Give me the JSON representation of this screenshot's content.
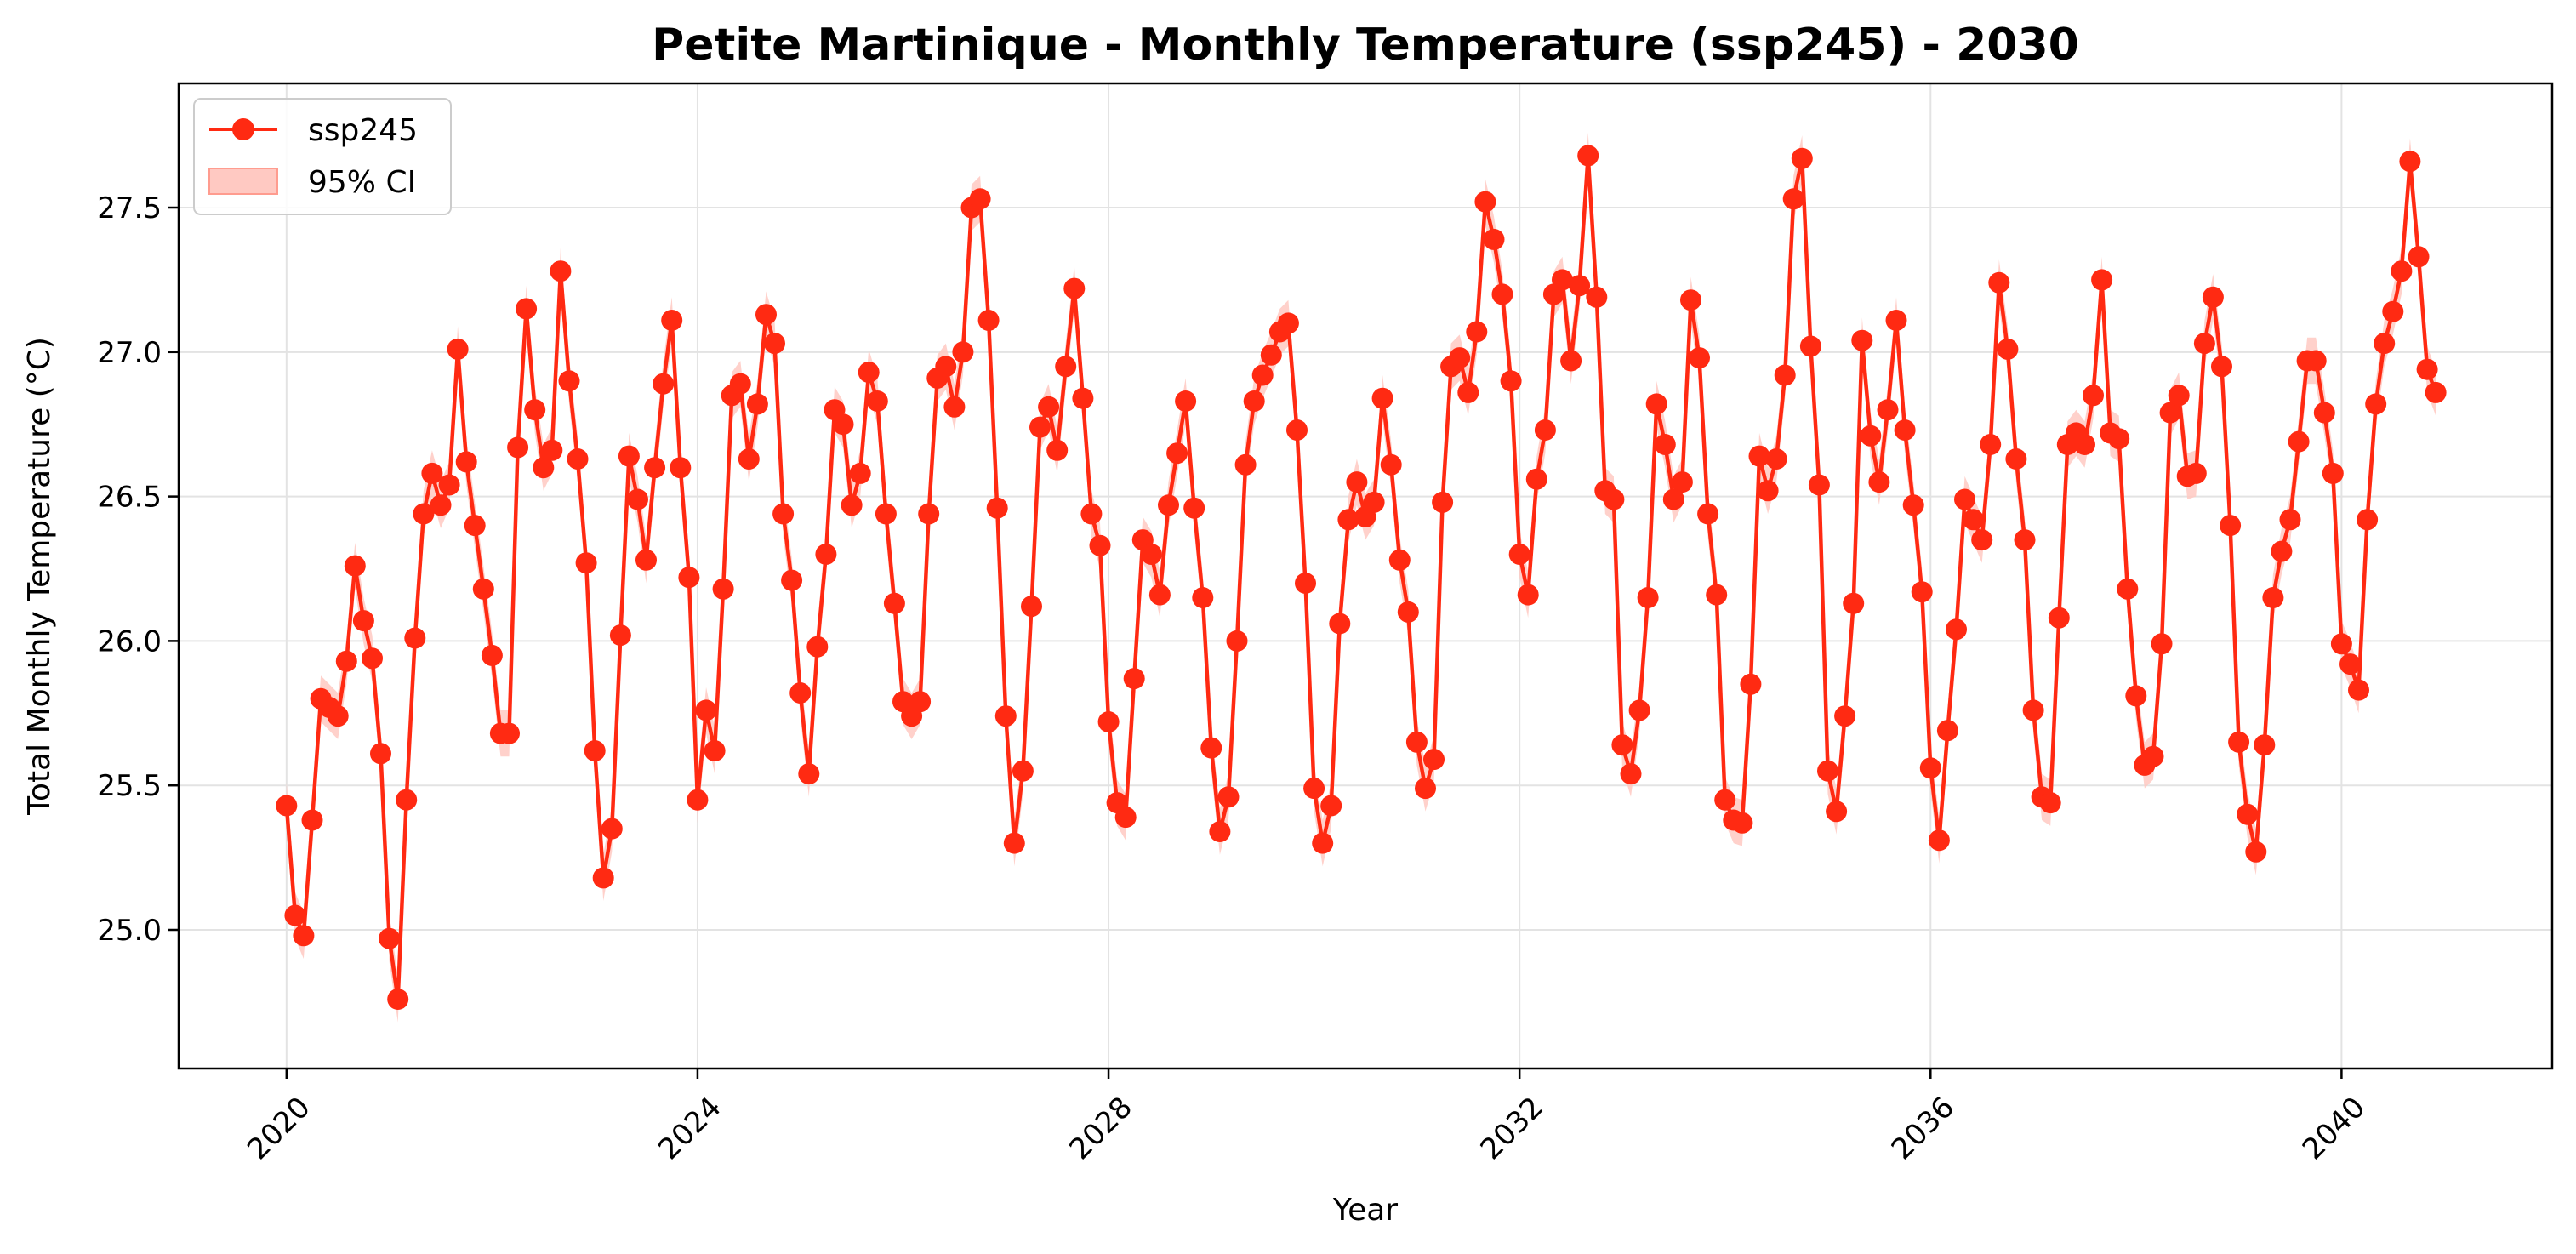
{
  "chart_data": {
    "type": "line",
    "title": "Petite Martinique - Monthly Temperature (ssp245) - 2030",
    "xlabel": "Year",
    "ylabel": "Total Monthly Temperature (°C)",
    "xlim": [
      2018.95,
      2042.05
    ],
    "ylim": [
      24.52,
      27.93
    ],
    "x_ticks": [
      2020,
      2024,
      2028,
      2032,
      2036,
      2040
    ],
    "x_tick_labels": [
      "2020",
      "2024",
      "2028",
      "2032",
      "2036",
      "2040"
    ],
    "y_ticks": [
      25.0,
      25.5,
      26.0,
      26.5,
      27.0,
      27.5
    ],
    "y_tick_labels": [
      "25.0",
      "25.5",
      "26.0",
      "26.5",
      "27.0",
      "27.5"
    ],
    "grid": true,
    "legend_position": "top-left",
    "x_start": "2020-01",
    "interval": "monthly",
    "ci_half_width": 0.08,
    "series": [
      {
        "name": "ssp245",
        "color": "#ff2a12",
        "marker": "circle",
        "values": [
          25.43,
          25.05,
          24.98,
          25.38,
          25.8,
          25.77,
          25.74,
          25.93,
          26.26,
          26.07,
          25.94,
          25.61,
          24.97,
          24.76,
          25.45,
          26.01,
          26.44,
          26.58,
          26.47,
          26.54,
          27.01,
          26.62,
          26.4,
          26.18,
          25.95,
          25.68,
          25.68,
          26.67,
          27.15,
          26.8,
          26.6,
          26.66,
          27.28,
          26.9,
          26.63,
          26.27,
          25.62,
          25.18,
          25.35,
          26.02,
          26.64,
          26.49,
          26.28,
          26.6,
          26.89,
          27.11,
          26.6,
          26.22,
          25.45,
          25.76,
          25.62,
          26.18,
          26.85,
          26.89,
          26.63,
          26.82,
          27.13,
          27.03,
          26.44,
          26.21,
          25.82,
          25.54,
          25.98,
          26.3,
          26.8,
          26.75,
          26.47,
          26.58,
          26.93,
          26.83,
          26.44,
          26.13,
          25.79,
          25.74,
          25.79,
          26.44,
          26.91,
          26.95,
          26.81,
          27.0,
          27.5,
          27.53,
          27.11,
          26.46,
          25.74,
          25.3,
          25.55,
          26.12,
          26.74,
          26.81,
          26.66,
          26.95,
          27.22,
          26.84,
          26.44,
          26.33,
          25.72,
          25.44,
          25.39,
          25.87,
          26.35,
          26.3,
          26.16,
          26.47,
          26.65,
          26.83,
          26.46,
          26.15,
          25.63,
          25.34,
          25.46,
          26.0,
          26.61,
          26.83,
          26.92,
          26.99,
          27.07,
          27.1,
          26.73,
          26.2,
          25.49,
          25.3,
          25.43,
          26.06,
          26.42,
          26.55,
          26.43,
          26.48,
          26.84,
          26.61,
          26.28,
          26.1,
          25.65,
          25.49,
          25.59,
          26.48,
          26.95,
          26.98,
          26.86,
          27.07,
          27.52,
          27.39,
          27.2,
          26.9,
          26.3,
          26.16,
          26.56,
          26.73,
          27.2,
          27.25,
          26.97,
          27.23,
          27.68,
          27.19,
          26.52,
          26.49,
          25.64,
          25.54,
          25.76,
          26.15,
          26.82,
          26.68,
          26.49,
          26.55,
          27.18,
          26.98,
          26.44,
          26.16,
          25.45,
          25.38,
          25.37,
          25.85,
          26.64,
          26.52,
          26.63,
          26.92,
          27.53,
          27.67,
          27.02,
          26.54,
          25.55,
          25.41,
          25.74,
          26.13,
          27.04,
          26.71,
          26.55,
          26.8,
          27.11,
          26.73,
          26.47,
          26.17,
          25.56,
          25.31,
          25.69,
          26.04,
          26.49,
          26.42,
          26.35,
          26.68,
          27.24,
          27.01,
          26.63,
          26.35,
          25.76,
          25.46,
          25.44,
          26.08,
          26.68,
          26.72,
          26.68,
          26.85,
          27.25,
          26.72,
          26.7,
          26.18,
          25.81,
          25.57,
          25.6,
          25.99,
          26.79,
          26.85,
          26.57,
          26.58,
          27.03,
          27.19,
          26.95,
          26.4,
          25.65,
          25.4,
          25.27,
          25.64,
          26.15,
          26.31,
          26.42,
          26.69,
          26.97,
          26.97,
          26.79,
          26.58,
          25.99,
          25.92,
          25.83,
          26.42,
          26.82,
          27.03,
          27.14,
          27.28,
          27.66,
          27.33,
          26.94,
          26.86
        ]
      }
    ],
    "legend": [
      {
        "label": "ssp245",
        "kind": "line-marker",
        "color": "#ff2a12"
      },
      {
        "label": "95% CI",
        "kind": "band",
        "color": "#ffc9c2"
      }
    ]
  }
}
